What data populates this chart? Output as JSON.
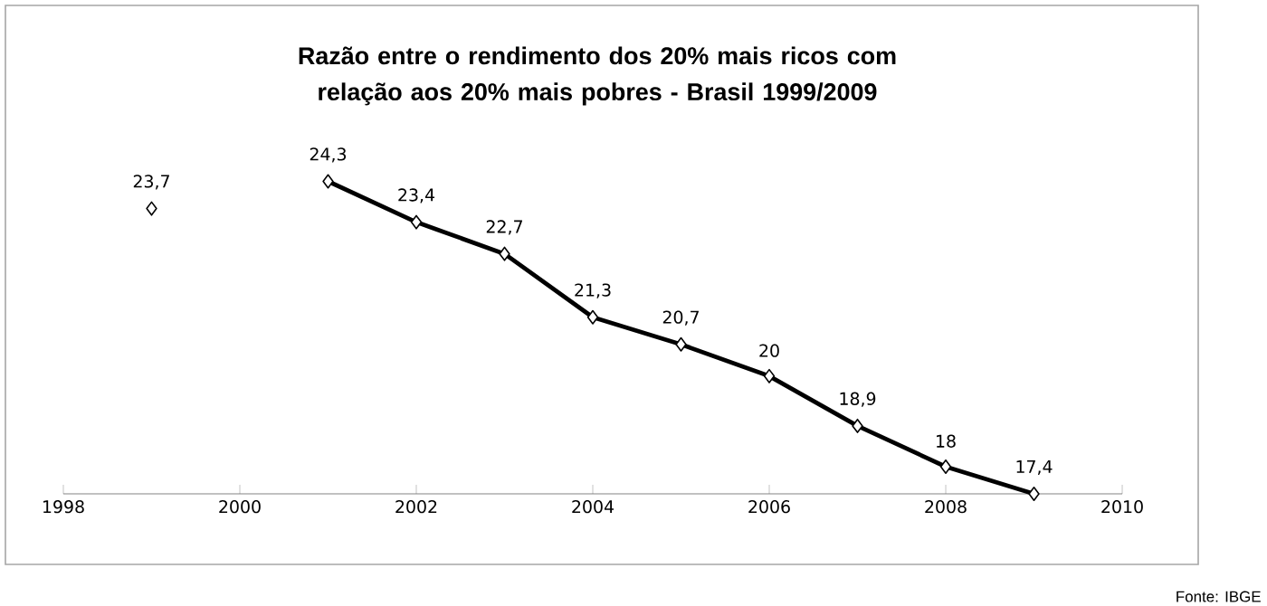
{
  "chart_data": {
    "type": "line",
    "title": "Razão entre o rendimento dos 20% mais ricos com relação aos 20% mais pobres - Brasil 1999/2009",
    "x": [
      1999,
      2000,
      2001,
      2002,
      2003,
      2004,
      2005,
      2006,
      2007,
      2008,
      2009
    ],
    "values": [
      23.7,
      null,
      24.3,
      23.4,
      22.7,
      21.3,
      20.7,
      20,
      18.9,
      18,
      17.4
    ],
    "value_labels": [
      "23,7",
      null,
      "24,3",
      "23,4",
      "22,7",
      "21,3",
      "20,7",
      "20",
      "18,9",
      "18",
      "17,4"
    ],
    "color": "#000000",
    "marker": "diamond",
    "line_style": "solid",
    "xlim": [
      1998,
      2010
    ],
    "xticks": [
      1998,
      2000,
      2002,
      2004,
      2006,
      2008,
      2010
    ],
    "tick_labels": "x",
    "annotations": [
      "Fonte: IBGE"
    ]
  }
}
